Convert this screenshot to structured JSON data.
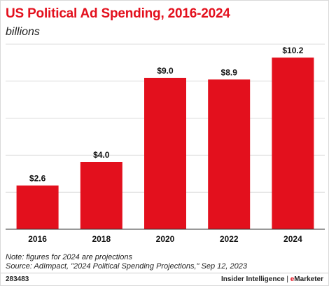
{
  "footer": {
    "id": "283483",
    "brand_left": "Insider Intelligence",
    "brand_sep": " | ",
    "brand_e": "e",
    "brand_right": "Marketer"
  },
  "notes": {
    "note": "Note: figures for 2024 are projections",
    "source": "Source: AdImpact, \"2024 Political Spending Projections,\" Sep 12, 2023"
  },
  "colors": {
    "bar": "#e3101d",
    "title": "#e3101d",
    "gridline": "#dcdcdc"
  },
  "chart_data": {
    "type": "bar",
    "title": "US Political Ad Spending, 2016-2024",
    "subtitle": "billions",
    "categories": [
      "2016",
      "2018",
      "2020",
      "2022",
      "2024"
    ],
    "values": [
      2.6,
      4.0,
      9.0,
      8.9,
      10.2
    ],
    "data_labels": [
      "$2.6",
      "$4.0",
      "$9.0",
      "$8.9",
      "$10.2"
    ],
    "ylim": [
      0,
      11
    ],
    "grid": true
  }
}
